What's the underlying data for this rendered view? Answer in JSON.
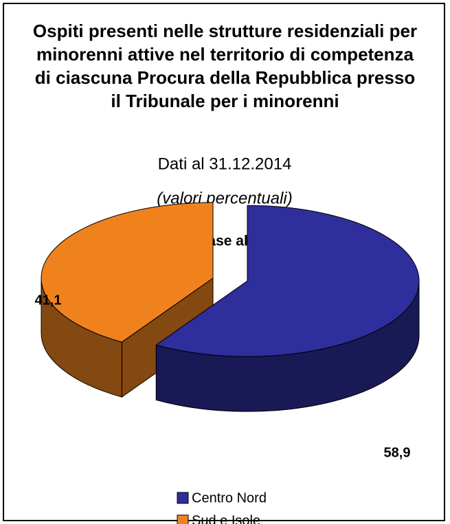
{
  "chart_data": {
    "type": "pie",
    "title": "Ospiti presenti nelle strutture residenziali per minorenni attive nel territorio di competenza di ciascuna Procura della Repubblica presso il Tribunale per i minorenni",
    "subtitle": "Dati al 31.12.2014",
    "note": "(valori percentuali)",
    "chart_title": "Distribuzione in base all’area geografica",
    "categories": [
      "Centro Nord",
      "Sud e Isole"
    ],
    "values": [
      58.9,
      41.1
    ],
    "value_labels": [
      "58,9",
      "41,1"
    ],
    "colors": [
      "#2e2e9c",
      "#f0821e"
    ],
    "legend": "bottom"
  }
}
